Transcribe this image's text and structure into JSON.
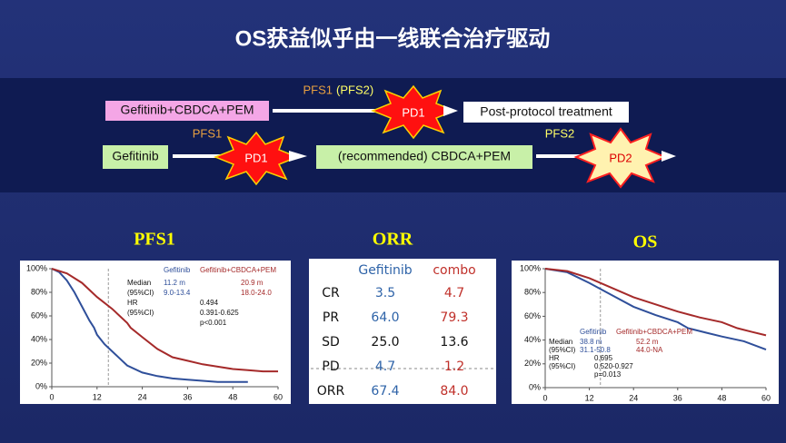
{
  "header": {
    "title": "OS获益似乎由一线联合治疗驱动"
  },
  "flow": {
    "arm1": "Gefitinib+CBDCA+PEM",
    "arm1_interval_a": "PFS1",
    "arm1_interval_b": "(PFS2)",
    "arm1_event": "PD1",
    "arm1_next": "Post-protocol treatment",
    "arm2": "Gefitinib",
    "arm2_interval1": "PFS1",
    "arm2_event1": "PD1",
    "arm2_next": "(recommended) CBDCA+PEM",
    "arm2_interval2": "PFS2",
    "arm2_event2": "PD2"
  },
  "table": {
    "title": "ORR",
    "header": [
      "Gefitinib",
      "combo"
    ],
    "rows": [
      [
        "CR",
        "3.5",
        "4.7"
      ],
      [
        "PR",
        "64.0",
        "79.3"
      ],
      [
        "SD",
        "25.0",
        "13.6"
      ],
      [
        "PD",
        "4.7",
        "1.2"
      ],
      [
        "ORR",
        "67.4",
        "84.0"
      ]
    ]
  },
  "chart_data": [
    {
      "type": "line",
      "title": "PFS1",
      "series": [
        {
          "name": "Gefitinib",
          "color": "#2f4f9a",
          "x": [
            0,
            2,
            4,
            6,
            8,
            10,
            11.2,
            12,
            14,
            16,
            18,
            20,
            24,
            28,
            32,
            36,
            40,
            44,
            48,
            52
          ],
          "values": [
            100,
            97,
            90,
            80,
            68,
            56,
            50,
            44,
            36,
            30,
            24,
            18,
            12,
            9,
            7,
            6,
            5,
            4,
            4,
            4
          ]
        },
        {
          "name": "Gefitinib+CBDCA+PEM",
          "color": "#a52a2a",
          "x": [
            0,
            4,
            8,
            12,
            16,
            20,
            20.9,
            24,
            28,
            32,
            36,
            40,
            44,
            48,
            52,
            56,
            60
          ],
          "values": [
            100,
            96,
            88,
            76,
            66,
            54,
            50,
            42,
            32,
            25,
            22,
            19,
            17,
            15,
            14,
            13,
            13
          ]
        }
      ],
      "stats": {
        "labels": [
          "Median",
          "(95%CI)",
          "HR",
          "(95%CI)"
        ],
        "gefitinib": [
          "11.2 m",
          "9.0-13.4"
        ],
        "combo": [
          "20.9 m",
          "18.0-24.0"
        ],
        "hr": [
          "0.494",
          "0.391-0.625",
          "p<0.001"
        ]
      },
      "xlim": [
        0,
        60
      ],
      "xticks": [
        0,
        12,
        24,
        36,
        48,
        60
      ],
      "ylim": [
        0,
        100
      ],
      "yticks": [
        {
          "value": 0,
          "label": "0%"
        },
        {
          "value": 20,
          "label": "20%"
        },
        {
          "value": 40,
          "label": "40%"
        },
        {
          "value": 60,
          "label": "60%"
        },
        {
          "value": 80,
          "label": "80%"
        },
        {
          "value": 100,
          "label": "100%"
        }
      ]
    },
    {
      "type": "line",
      "title": "OS",
      "series": [
        {
          "name": "Gefitinib",
          "color": "#2f4f9a",
          "x": [
            0,
            6,
            12,
            18,
            24,
            30,
            36,
            38.8,
            44,
            48,
            54,
            60
          ],
          "values": [
            100,
            97,
            88,
            78,
            68,
            61,
            55,
            50,
            46,
            43,
            39,
            32
          ]
        },
        {
          "name": "Gefitinib+CBDCA+PEM",
          "color": "#a52a2a",
          "x": [
            0,
            6,
            12,
            18,
            24,
            30,
            36,
            42,
            48,
            52.2,
            56,
            60
          ],
          "values": [
            100,
            98,
            92,
            84,
            76,
            70,
            64,
            59,
            55,
            50,
            47,
            44
          ]
        }
      ],
      "stats": {
        "labels": [
          "Median",
          "(95%CI)",
          "HR",
          "(95%CI)"
        ],
        "gefitinib": [
          "38.8 m",
          "31.1-50.8"
        ],
        "combo": [
          "52.2 m",
          "44.0-NA"
        ],
        "hr": [
          "0.695",
          "0.520-0.927",
          "p=0.013"
        ]
      },
      "xlim": [
        0,
        60
      ],
      "xticks": [
        0,
        12,
        24,
        36,
        48,
        60
      ],
      "ylim": [
        0,
        100
      ],
      "yticks": [
        {
          "value": 0,
          "label": "0%"
        },
        {
          "value": 20,
          "label": "20%"
        },
        {
          "value": 40,
          "label": "40%"
        },
        {
          "value": 60,
          "label": "60%"
        },
        {
          "value": 80,
          "label": "80%"
        },
        {
          "value": 100,
          "label": "100%"
        }
      ]
    }
  ]
}
